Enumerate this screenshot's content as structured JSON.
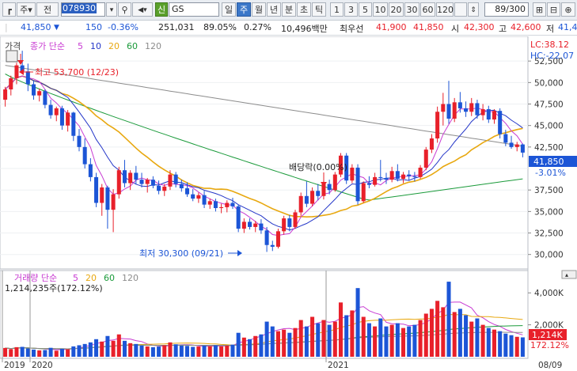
{
  "toolbar": {
    "stock_code": "078930",
    "stock_name": "GS",
    "market_badge": "신",
    "prefix_label": "주",
    "prefix2_label": "전",
    "period_tabs": [
      "일",
      "주",
      "월",
      "년",
      "분",
      "초",
      "틱"
    ],
    "selected_period": "주",
    "interval_buttons": [
      "1",
      "3",
      "5",
      "10",
      "20",
      "30",
      "60",
      "120"
    ],
    "page_counter": "89/300"
  },
  "quote": {
    "price": "41,850",
    "change": "150",
    "change_pct": "-0.36%",
    "volume": "251,031",
    "vol_ratio": "89.05%",
    "turnover_pct": "0.27%",
    "amount": "10,496백만",
    "priority_label": "최우선",
    "priority_ask": "41,900",
    "priority_bid": "41,850",
    "open_label": "시",
    "open": "42,300",
    "high_label": "고",
    "high": "42,600",
    "low_label": "저",
    "low": "41,4"
  },
  "price_panel": {
    "legend_prefix": "가격",
    "legend_title": "종가 단순",
    "ma_periods": [
      "5",
      "10",
      "20",
      "60",
      "120"
    ],
    "lc_label": "LC:38.12",
    "hc_label": "HC:-22.07",
    "current_price_label": "41,850",
    "current_pct_label": "-3.01%",
    "annotation_high": "최고 53,700 (12/23)",
    "annotation_low": "최저 30,300 (09/21)",
    "annotation_dividend": "배당락(0.00%)",
    "y_ticks": [
      "52,500",
      "50,000",
      "47,500",
      "45,000",
      "42,500",
      "37,500",
      "35,000",
      "32,500",
      "30,000"
    ]
  },
  "volume_panel": {
    "legend_title": "거래량 단순",
    "ma_periods": [
      "5",
      "20",
      "60",
      "120"
    ],
    "volume_info": "1,214,235주(172.12%)",
    "current_volume_label": "1,214K",
    "current_pct_label": "172.12%",
    "y_ticks": [
      "4,000K",
      "2,000K"
    ]
  },
  "x_axis": {
    "labels": [
      "2019",
      "2020",
      "2021",
      "08/09"
    ]
  },
  "colors": {
    "up": "#e8202a",
    "down": "#1c55d6",
    "ma5": "#c83bd2",
    "ma10": "#2436c8",
    "ma20": "#e8a810",
    "ma60": "#1a9a3a",
    "ma120": "#8c8c8c"
  },
  "chart_data": {
    "type": "candlestick",
    "ylim": [
      28500,
      55000
    ],
    "candles": [
      {
        "o": 48000,
        "h": 49500,
        "l": 47200,
        "c": 49200
      },
      {
        "o": 49200,
        "h": 50800,
        "l": 48500,
        "c": 50500
      },
      {
        "o": 50500,
        "h": 52300,
        "l": 49800,
        "c": 52000
      },
      {
        "o": 52000,
        "h": 53700,
        "l": 51000,
        "c": 51300
      },
      {
        "o": 51300,
        "h": 52200,
        "l": 49000,
        "c": 49800
      },
      {
        "o": 49800,
        "h": 50200,
        "l": 48000,
        "c": 48500
      },
      {
        "o": 48500,
        "h": 49300,
        "l": 47800,
        "c": 49000
      },
      {
        "o": 49000,
        "h": 49200,
        "l": 47000,
        "c": 47400
      },
      {
        "o": 47400,
        "h": 48000,
        "l": 45800,
        "c": 46200
      },
      {
        "o": 46200,
        "h": 47200,
        "l": 45500,
        "c": 47000
      },
      {
        "o": 47000,
        "h": 47300,
        "l": 44500,
        "c": 45000
      },
      {
        "o": 45000,
        "h": 46800,
        "l": 44300,
        "c": 46500
      },
      {
        "o": 46500,
        "h": 46600,
        "l": 43200,
        "c": 43800
      },
      {
        "o": 43800,
        "h": 44600,
        "l": 42000,
        "c": 42500
      },
      {
        "o": 42500,
        "h": 43500,
        "l": 40000,
        "c": 40500
      },
      {
        "o": 40500,
        "h": 41200,
        "l": 38500,
        "c": 39000
      },
      {
        "o": 39000,
        "h": 39500,
        "l": 35500,
        "c": 36000
      },
      {
        "o": 36000,
        "h": 38200,
        "l": 34500,
        "c": 37800
      },
      {
        "o": 37800,
        "h": 38000,
        "l": 33000,
        "c": 35200
      },
      {
        "o": 35200,
        "h": 37600,
        "l": 32600,
        "c": 37000
      },
      {
        "o": 37000,
        "h": 40200,
        "l": 36500,
        "c": 39800
      },
      {
        "o": 39800,
        "h": 41000,
        "l": 37800,
        "c": 38300
      },
      {
        "o": 38300,
        "h": 39800,
        "l": 37500,
        "c": 39500
      },
      {
        "o": 39500,
        "h": 40300,
        "l": 38200,
        "c": 38700
      },
      {
        "o": 38700,
        "h": 39500,
        "l": 37800,
        "c": 38200
      },
      {
        "o": 38200,
        "h": 38900,
        "l": 37200,
        "c": 38700
      },
      {
        "o": 38700,
        "h": 39100,
        "l": 37700,
        "c": 38000
      },
      {
        "o": 38000,
        "h": 38600,
        "l": 37000,
        "c": 37400
      },
      {
        "o": 37400,
        "h": 38200,
        "l": 36800,
        "c": 37900
      },
      {
        "o": 37900,
        "h": 39800,
        "l": 37500,
        "c": 39300
      },
      {
        "o": 39300,
        "h": 39600,
        "l": 37800,
        "c": 38200
      },
      {
        "o": 38200,
        "h": 38700,
        "l": 37300,
        "c": 37700
      },
      {
        "o": 37700,
        "h": 38400,
        "l": 36700,
        "c": 37000
      },
      {
        "o": 37000,
        "h": 37600,
        "l": 36200,
        "c": 36500
      },
      {
        "o": 36500,
        "h": 37200,
        "l": 36000,
        "c": 36900
      },
      {
        "o": 36900,
        "h": 37400,
        "l": 35400,
        "c": 35800
      },
      {
        "o": 35800,
        "h": 36500,
        "l": 35300,
        "c": 36200
      },
      {
        "o": 36200,
        "h": 36500,
        "l": 35000,
        "c": 35400
      },
      {
        "o": 35400,
        "h": 35900,
        "l": 34800,
        "c": 35500
      },
      {
        "o": 35500,
        "h": 36300,
        "l": 34900,
        "c": 36000
      },
      {
        "o": 36000,
        "h": 36600,
        "l": 35300,
        "c": 35600
      },
      {
        "o": 35600,
        "h": 35800,
        "l": 32600,
        "c": 33000
      },
      {
        "o": 33000,
        "h": 34200,
        "l": 32500,
        "c": 33800
      },
      {
        "o": 33800,
        "h": 34200,
        "l": 32900,
        "c": 33200
      },
      {
        "o": 33200,
        "h": 33900,
        "l": 32600,
        "c": 33600
      },
      {
        "o": 33600,
        "h": 34100,
        "l": 32400,
        "c": 32800
      },
      {
        "o": 32800,
        "h": 33200,
        "l": 30300,
        "c": 31100
      },
      {
        "o": 31100,
        "h": 31600,
        "l": 30400,
        "c": 30900
      },
      {
        "o": 30900,
        "h": 33000,
        "l": 30700,
        "c": 32700
      },
      {
        "o": 32700,
        "h": 34500,
        "l": 32300,
        "c": 34200
      },
      {
        "o": 34200,
        "h": 34600,
        "l": 32700,
        "c": 33200
      },
      {
        "o": 33200,
        "h": 35200,
        "l": 33000,
        "c": 34900
      },
      {
        "o": 34900,
        "h": 37200,
        "l": 34500,
        "c": 36800
      },
      {
        "o": 36800,
        "h": 38500,
        "l": 35500,
        "c": 35900
      },
      {
        "o": 35900,
        "h": 37800,
        "l": 35600,
        "c": 37400
      },
      {
        "o": 37400,
        "h": 38200,
        "l": 36300,
        "c": 36800
      },
      {
        "o": 36800,
        "h": 38600,
        "l": 36400,
        "c": 38200
      },
      {
        "o": 38200,
        "h": 38700,
        "l": 37000,
        "c": 37500
      },
      {
        "o": 37500,
        "h": 39600,
        "l": 37300,
        "c": 39300
      },
      {
        "o": 39300,
        "h": 41800,
        "l": 39000,
        "c": 41500
      },
      {
        "o": 41500,
        "h": 41800,
        "l": 38200,
        "c": 38600
      },
      {
        "o": 38600,
        "h": 40500,
        "l": 38300,
        "c": 40100
      },
      {
        "o": 40100,
        "h": 40500,
        "l": 35800,
        "c": 36200
      },
      {
        "o": 36200,
        "h": 38500,
        "l": 36000,
        "c": 38300
      },
      {
        "o": 38300,
        "h": 39100,
        "l": 37700,
        "c": 38100
      },
      {
        "o": 38100,
        "h": 39500,
        "l": 37900,
        "c": 39000
      },
      {
        "o": 39000,
        "h": 41000,
        "l": 38500,
        "c": 38900
      },
      {
        "o": 38900,
        "h": 39500,
        "l": 38200,
        "c": 38700
      },
      {
        "o": 38700,
        "h": 40200,
        "l": 38400,
        "c": 39700
      },
      {
        "o": 39700,
        "h": 40500,
        "l": 38500,
        "c": 38800
      },
      {
        "o": 38800,
        "h": 39600,
        "l": 38300,
        "c": 39300
      },
      {
        "o": 39300,
        "h": 39800,
        "l": 38600,
        "c": 39100
      },
      {
        "o": 39100,
        "h": 39600,
        "l": 38500,
        "c": 39000
      },
      {
        "o": 39000,
        "h": 40400,
        "l": 38800,
        "c": 40100
      },
      {
        "o": 40100,
        "h": 42500,
        "l": 39800,
        "c": 42200
      },
      {
        "o": 42200,
        "h": 44000,
        "l": 41800,
        "c": 43500
      },
      {
        "o": 43500,
        "h": 47200,
        "l": 43000,
        "c": 46600
      },
      {
        "o": 46600,
        "h": 48800,
        "l": 45000,
        "c": 47500
      },
      {
        "o": 47500,
        "h": 50200,
        "l": 45200,
        "c": 45800
      },
      {
        "o": 45800,
        "h": 48200,
        "l": 45400,
        "c": 47700
      },
      {
        "o": 47700,
        "h": 48900,
        "l": 46500,
        "c": 47000
      },
      {
        "o": 47000,
        "h": 47800,
        "l": 46000,
        "c": 46600
      },
      {
        "o": 46600,
        "h": 48200,
        "l": 46100,
        "c": 47600
      },
      {
        "o": 47600,
        "h": 48000,
        "l": 45800,
        "c": 46200
      },
      {
        "o": 46200,
        "h": 47500,
        "l": 45600,
        "c": 46900
      },
      {
        "o": 46900,
        "h": 47300,
        "l": 45300,
        "c": 45700
      },
      {
        "o": 45700,
        "h": 46900,
        "l": 45200,
        "c": 46700
      },
      {
        "o": 46700,
        "h": 47000,
        "l": 43500,
        "c": 44000
      },
      {
        "o": 44000,
        "h": 44500,
        "l": 42600,
        "c": 43000
      },
      {
        "o": 43000,
        "h": 43800,
        "l": 42300,
        "c": 42500
      },
      {
        "o": 42500,
        "h": 43100,
        "l": 42000,
        "c": 42800
      },
      {
        "o": 42800,
        "h": 42900,
        "l": 41300,
        "c": 41850
      }
    ],
    "volume_ylim": [
      0,
      5200000
    ],
    "volumes": [
      550000,
      480000,
      600000,
      620000,
      520000,
      450000,
      400000,
      420000,
      560000,
      380000,
      500000,
      470000,
      650000,
      720000,
      800000,
      900000,
      1100000,
      950000,
      1300000,
      1000000,
      1400000,
      1000000,
      850000,
      800000,
      700000,
      650000,
      600000,
      640000,
      720000,
      900000,
      780000,
      700000,
      680000,
      620000,
      640000,
      700000,
      660000,
      720000,
      650000,
      700000,
      760000,
      1500000,
      1200000,
      1100000,
      1300000,
      1400000,
      2200000,
      1900000,
      1600000,
      1700000,
      1500000,
      1800000,
      2300000,
      1900000,
      2500000,
      2100000,
      2300000,
      2000000,
      2200000,
      3400000,
      2600000,
      2900000,
      4300000,
      2500000,
      2100000,
      1900000,
      2400000,
      1900000,
      2000000,
      2100000,
      1800000,
      1900000,
      2000000,
      2300000,
      2700000,
      3000000,
      3500000,
      3100000,
      4700000,
      2800000,
      3000000,
      2600000,
      2200000,
      2400000,
      2000000,
      1800000,
      1700000,
      1600000,
      1450000,
      1350000,
      1250000,
      1214235
    ]
  }
}
